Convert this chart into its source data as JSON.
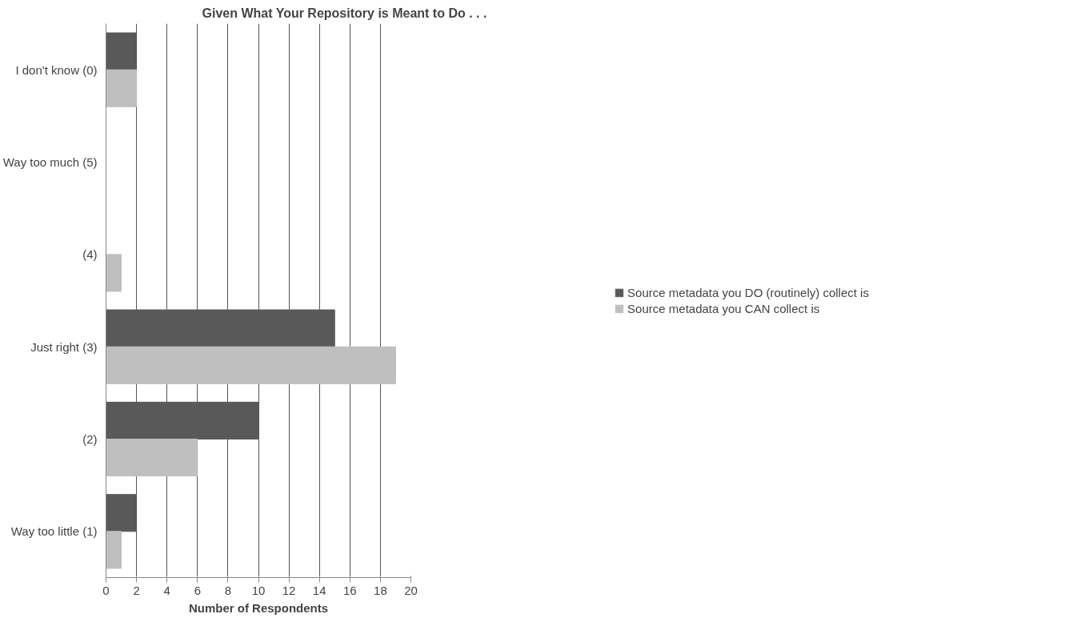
{
  "chart_data": {
    "type": "bar",
    "orientation": "horizontal",
    "title": "Given What Your Repository is Meant to Do . . .",
    "xlabel": "Number of Respondents",
    "categories": [
      "I don't know (0)",
      "Way too much (5)",
      "(4)",
      "Just right (3)",
      "(2)",
      "Way too little (1)"
    ],
    "series": [
      {
        "name": "Source metadata you DO (routinely) collect is",
        "color": "#595959",
        "values": [
          2,
          0,
          0,
          15,
          10,
          2
        ]
      },
      {
        "name": "Source metadata you CAN collect is",
        "color": "#bfbfbf",
        "values": [
          2,
          0,
          1,
          19,
          6,
          1
        ]
      }
    ],
    "xlim": [
      0,
      20
    ],
    "xticks": [
      0,
      2,
      4,
      6,
      8,
      10,
      12,
      14,
      16,
      18,
      20
    ],
    "grid": "x",
    "legend": "right"
  }
}
